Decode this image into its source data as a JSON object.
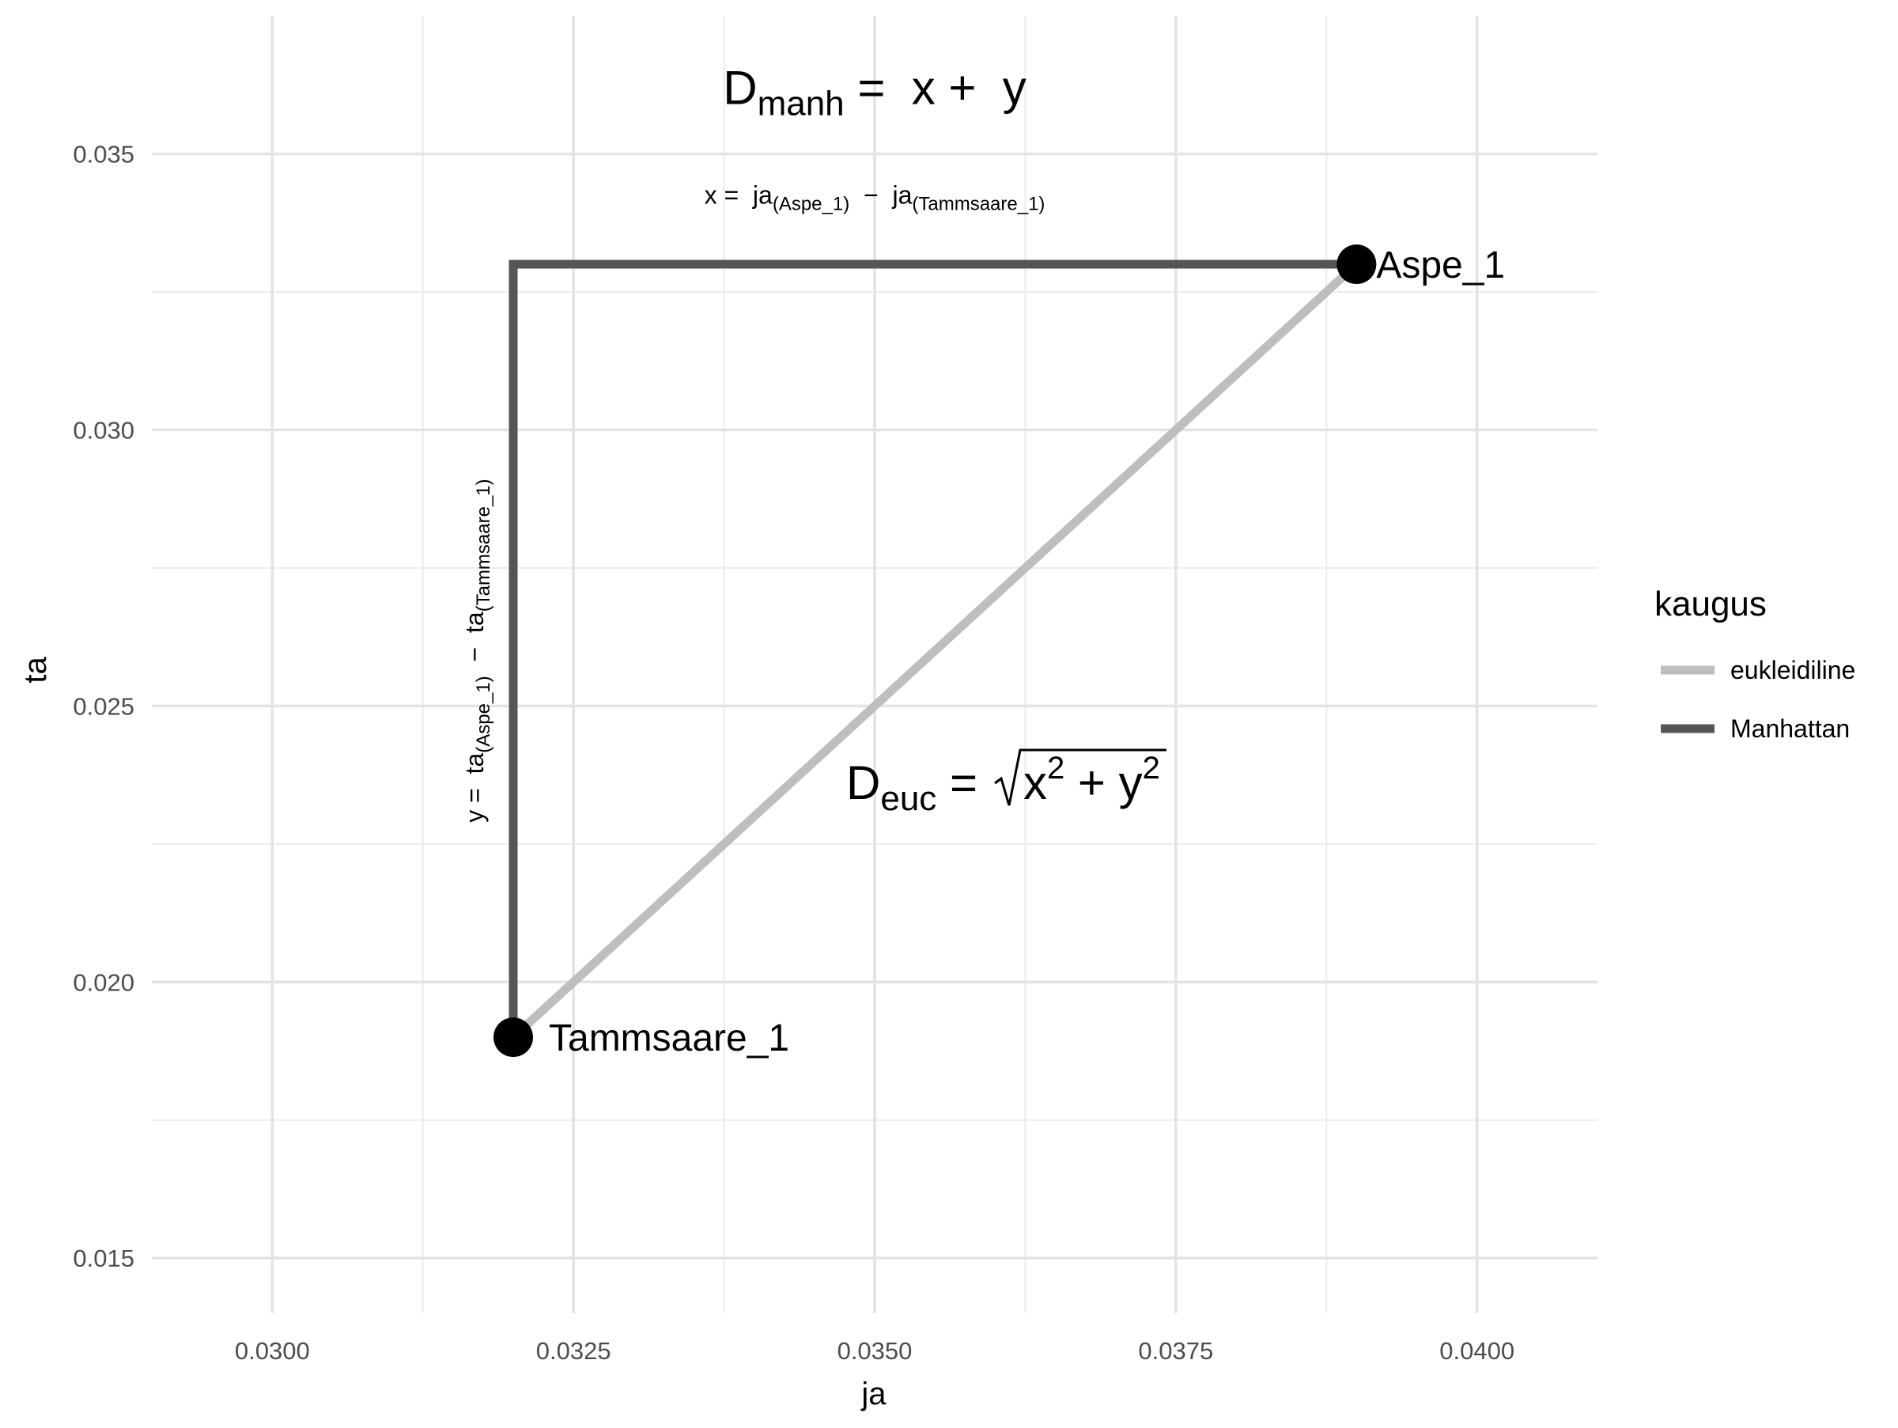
{
  "chart_data": {
    "type": "line",
    "xlabel": "ja",
    "ylabel": "ta",
    "xlim": [
      0.029,
      0.041
    ],
    "ylim": [
      0.014,
      0.0375
    ],
    "x_ticks": [
      0.03,
      0.0325,
      0.035,
      0.0375,
      0.04
    ],
    "x_tick_labels": [
      "0.0300",
      "0.0325",
      "0.0350",
      "0.0375",
      "0.0400"
    ],
    "y_ticks": [
      0.015,
      0.02,
      0.025,
      0.03,
      0.035
    ],
    "y_tick_labels": [
      "0.015",
      "0.020",
      "0.025",
      "0.030",
      "0.035"
    ],
    "grid": true,
    "legend": {
      "title": "kaugus",
      "position": "right",
      "entries": [
        {
          "label": "eukleidiline",
          "color": "#bebebe"
        },
        {
          "label": "Manhattan",
          "color": "#555555"
        }
      ]
    },
    "series": [
      {
        "name": "eukleidiline",
        "color": "#bebebe",
        "points": [
          [
            0.032,
            0.019
          ],
          [
            0.039,
            0.033
          ]
        ]
      },
      {
        "name": "Manhattan",
        "color": "#555555",
        "points": [
          [
            0.032,
            0.019
          ],
          [
            0.032,
            0.033
          ],
          [
            0.039,
            0.033
          ]
        ]
      }
    ],
    "points": [
      {
        "label": "Tammsaare_1",
        "x": 0.032,
        "y": 0.019
      },
      {
        "label": "Aspe_1",
        "x": 0.039,
        "y": 0.033
      }
    ],
    "annotations": {
      "d_manh": {
        "x": 0.035,
        "y": 0.0359,
        "D": "D",
        "sub": "manh",
        "rest": " =  x +  y"
      },
      "x_formula": {
        "x": 0.035,
        "y": 0.0341,
        "pre": "x =  ja",
        "sub1": "(Aspe_1)",
        "mid": "  −  ja",
        "sub2": "(Tammsaare_1)"
      },
      "y_formula": {
        "x": 0.03175,
        "y": 0.026,
        "pre": "y =  ta",
        "sub1": "(Aspe_1)",
        "mid": "  −  ta",
        "sub2": "(Tammsaare_1)"
      },
      "d_euc": {
        "x": 0.036,
        "y": 0.0244,
        "D": "D",
        "sub": "euc",
        "eq": " = ",
        "radicand_x": "x",
        "radicand_plus": " + y",
        "sup": "2"
      }
    }
  }
}
